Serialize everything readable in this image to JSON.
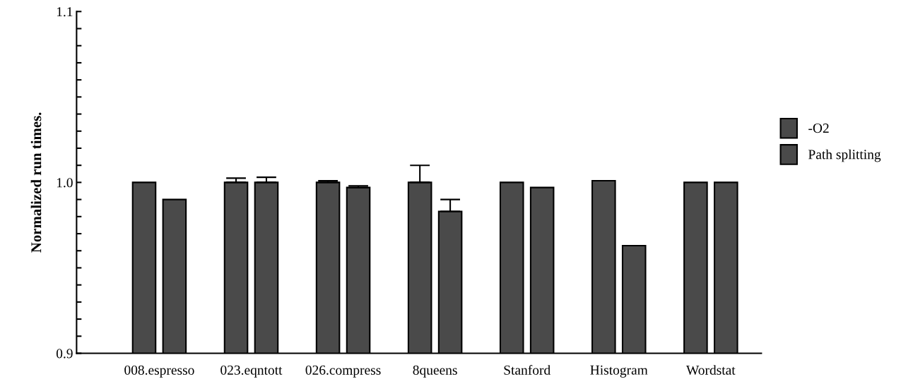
{
  "chart_data": {
    "type": "bar",
    "ylabel": "Normalized run times.",
    "categories": [
      "008.espresso",
      "023.eqntott",
      "026.compress",
      "8queens",
      "Stanford",
      "Histogram",
      "Wordstat"
    ],
    "series": [
      {
        "name": "-O2",
        "color": "#4a4a4a",
        "values": [
          1.0,
          1.0,
          1.0,
          1.0,
          1.0,
          1.001,
          1.0
        ],
        "errors": [
          null,
          [
            1.0,
            1.0025
          ],
          [
            1.0,
            1.001
          ],
          [
            1.0,
            1.01
          ],
          null,
          null,
          null
        ]
      },
      {
        "name": "Path splitting",
        "color": "#4a4a4a",
        "values": [
          0.99,
          1.0,
          0.997,
          0.983,
          0.997,
          0.963,
          1.0
        ],
        "errors": [
          null,
          [
            1.0,
            1.003
          ],
          [
            0.997,
            0.998
          ],
          [
            0.983,
            0.99
          ],
          null,
          null,
          null
        ]
      }
    ],
    "ylim": [
      0.9,
      1.1
    ],
    "yticks": [
      0.9,
      {
        "value": 0.91,
        "label": null
      },
      {
        "value": 0.92,
        "label": null
      },
      {
        "value": 0.93,
        "label": null
      },
      {
        "value": 0.94,
        "label": null
      },
      {
        "value": 0.95,
        "label": null
      },
      {
        "value": 0.96,
        "label": null
      },
      {
        "value": 0.97,
        "label": null
      },
      {
        "value": 0.98,
        "label": null
      },
      {
        "value": 0.99,
        "label": null
      },
      {
        "value": 1.0,
        "label": "1.0"
      },
      {
        "value": 1.01,
        "label": null
      },
      {
        "value": 1.02,
        "label": null
      },
      {
        "value": 1.03,
        "label": null
      },
      {
        "value": 1.04,
        "label": null
      },
      {
        "value": 1.05,
        "label": null
      },
      {
        "value": 1.06,
        "label": null
      },
      {
        "value": 1.07,
        "label": null
      },
      {
        "value": 1.08,
        "label": null
      },
      {
        "value": 1.09,
        "label": null
      },
      1.1
    ],
    "grid": false,
    "legend": "right"
  }
}
